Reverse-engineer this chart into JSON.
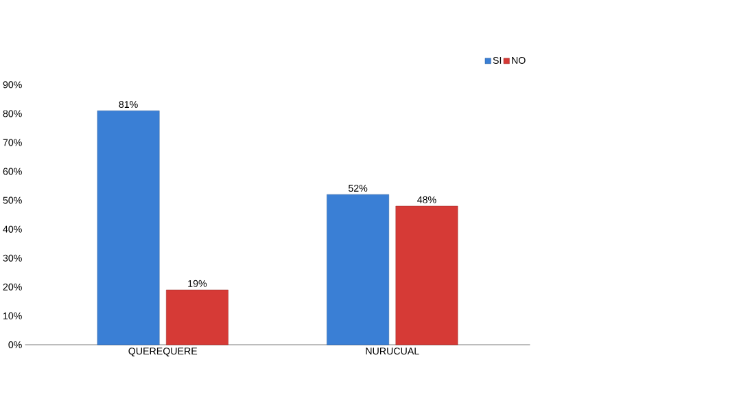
{
  "chart_data": {
    "type": "bar",
    "categories": [
      "QUEREQUERE",
      "NURUCUAL"
    ],
    "series": [
      {
        "name": "SI",
        "color": "#3a7fd5",
        "values": [
          81,
          52
        ],
        "value_labels": [
          "81%",
          "52%"
        ]
      },
      {
        "name": "NO",
        "color": "#d63a36",
        "values": [
          19,
          48
        ],
        "value_labels": [
          "19%",
          "48%"
        ]
      }
    ],
    "ylim": [
      0,
      90
    ],
    "yticks": [
      {
        "value": 0,
        "label": "0%"
      },
      {
        "value": 10,
        "label": "10%"
      },
      {
        "value": 20,
        "label": "20%"
      },
      {
        "value": 30,
        "label": "30%"
      },
      {
        "value": 40,
        "label": "40%"
      },
      {
        "value": 50,
        "label": "50%"
      },
      {
        "value": 60,
        "label": "60%"
      },
      {
        "value": 70,
        "label": "70%"
      },
      {
        "value": 80,
        "label": "80%"
      },
      {
        "value": 90,
        "label": "90%"
      }
    ],
    "legend": "top right",
    "grid": false
  }
}
